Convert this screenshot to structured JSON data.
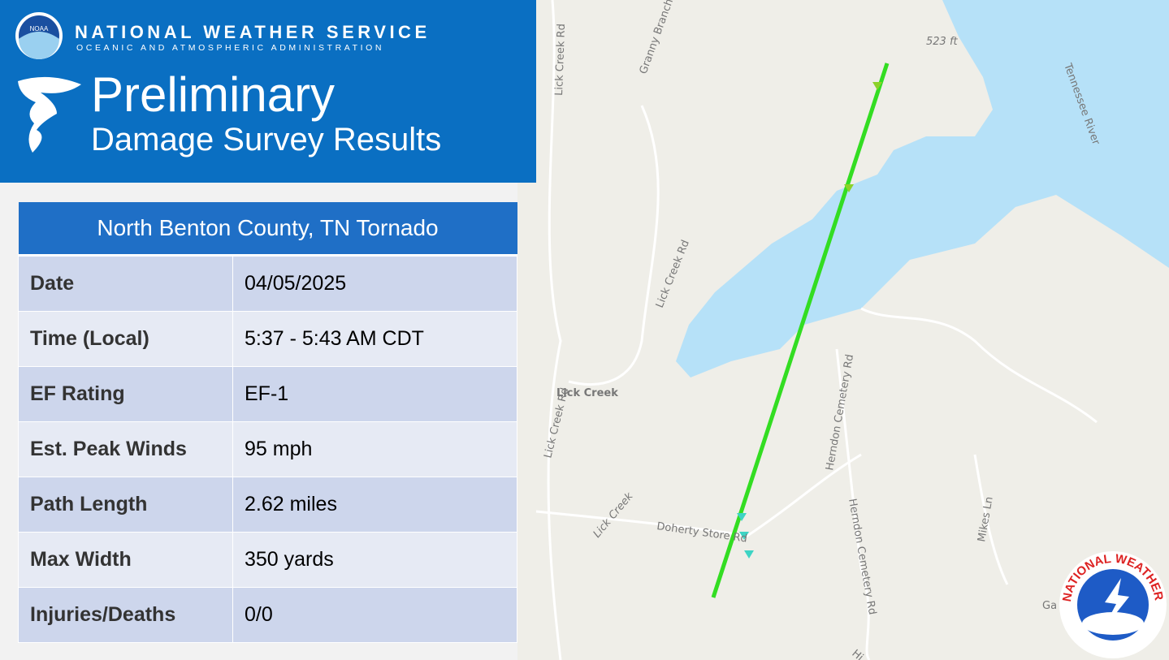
{
  "header": {
    "agency": "NATIONAL WEATHER SERVICE",
    "subagency": "OCEANIC AND ATMOSPHERIC ADMINISTRATION",
    "logo_text": "NOAA",
    "title": "Preliminary",
    "subtitle": "Damage Survey Results"
  },
  "table": {
    "title": "North Benton County, TN Tornado",
    "rows": [
      [
        "Date",
        "04/05/2025"
      ],
      [
        "Time (Local)",
        "5:37 - 5:43 AM CDT"
      ],
      [
        "EF Rating",
        "EF-1"
      ],
      [
        "Est. Peak Winds",
        "95 mph"
      ],
      [
        "Path Length",
        "2.62 miles"
      ],
      [
        "Max Width",
        "350 yards"
      ],
      [
        "Injuries/Deaths",
        "0/0"
      ]
    ]
  },
  "map": {
    "labels": [
      "523 ft",
      "Tennessee River",
      "Granny Branch",
      "Lick Creek Rd",
      "Lick Creek Rd",
      "Lick Creek",
      "Lick Creek Rd",
      "Herndon Cemetery Rd",
      "Herndon Cemetery Rd",
      "Doherty Store Rd",
      "Lick Creek",
      "Mikes Ln",
      "Ga",
      "Hi"
    ],
    "logo_text": "NATIONAL WEATHER SERVICE"
  }
}
